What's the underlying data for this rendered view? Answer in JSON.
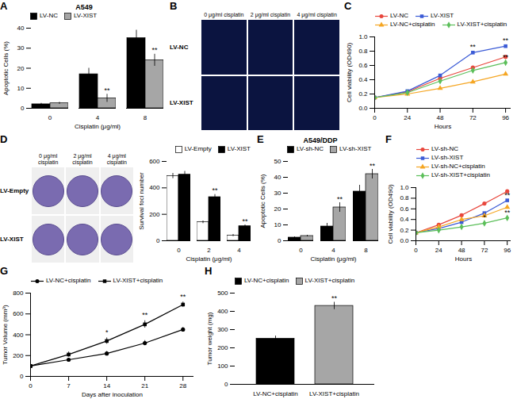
{
  "chart_data": [
    {
      "panel": "A",
      "type": "bar",
      "title": "A549",
      "categories": [
        0,
        4,
        8
      ],
      "x_label": "Cisplatin (μg/ml)",
      "y_label": "Apoptotic Cells (%)",
      "ylim": [
        0,
        40
      ],
      "yticks": [
        0,
        10,
        20,
        30,
        40
      ],
      "grid": false,
      "legend": "top-left",
      "series": [
        {
          "name": "LV-NC",
          "color": "#000000",
          "values": [
            2,
            17,
            35
          ],
          "errors": [
            0.5,
            3,
            4
          ]
        },
        {
          "name": "LV-XIST",
          "color": "#a6a6a6",
          "values": [
            2.5,
            5,
            24
          ],
          "errors": [
            0.5,
            2,
            3
          ],
          "significance": [
            null,
            "**",
            "**"
          ]
        }
      ]
    },
    {
      "panel": "B",
      "type": "image_grid",
      "columns": [
        "0 μg/ml cisplatin",
        "2 μg/ml cisplatin",
        "4 μg/ml cisplatin"
      ],
      "rows": [
        "LV-NC",
        "LV-XIST"
      ]
    },
    {
      "panel": "C",
      "type": "line",
      "x": [
        0,
        24,
        48,
        72,
        96
      ],
      "x_label": "Hours",
      "y_label": "Cell viability (OD490)",
      "xlim": [
        0,
        100
      ],
      "xticks": [
        0,
        24,
        48,
        72,
        96
      ],
      "ylim": [
        0,
        1
      ],
      "yticks": [
        {
          "value": 0,
          "label": "0.0"
        },
        0.2,
        0.4,
        0.6,
        0.8,
        {
          "value": 1,
          "label": "1.0"
        }
      ],
      "grid": false,
      "legend": "top-left",
      "series": [
        {
          "name": "LV-NC",
          "color": "#e8463c",
          "marker": "circle",
          "values": [
            0.15,
            0.23,
            0.42,
            0.57,
            0.72
          ]
        },
        {
          "name": "LV-XIST",
          "color": "#3b5bd6",
          "marker": "square",
          "values": [
            0.15,
            0.24,
            0.46,
            0.78,
            0.87
          ],
          "significance": [
            null,
            null,
            null,
            "**",
            "**"
          ]
        },
        {
          "name": "LV-NC+cisplatin",
          "color": "#f5a623",
          "marker": "triangle",
          "values": [
            0.15,
            0.2,
            0.28,
            0.37,
            0.48
          ]
        },
        {
          "name": "LV-XIST+cisplatin",
          "color": "#5cbf5a",
          "marker": "diamond",
          "values": [
            0.15,
            0.22,
            0.38,
            0.53,
            0.64
          ],
          "significance": [
            null,
            null,
            null,
            null,
            "**"
          ]
        }
      ]
    },
    {
      "panel": "D",
      "type": "bar",
      "images": {
        "columns": [
          "0 μg/ml cisplatin",
          "2 μg/ml cisplatin",
          "4 μg/ml cisplatin"
        ],
        "rows": [
          "LV-Empty",
          "LV-XIST"
        ]
      },
      "categories": [
        0,
        2,
        4
      ],
      "x_label": "Cisplatin (μg/ml)",
      "y_label": "Survival foci number",
      "ylim": [
        0,
        600
      ],
      "yticks": [
        0,
        200,
        400,
        600
      ],
      "grid": false,
      "legend": "top-right",
      "series": [
        {
          "name": "LV-Empty",
          "color": "#ffffff",
          "values": [
            490,
            140,
            40
          ],
          "errors": [
            20,
            10,
            8
          ]
        },
        {
          "name": "LV-XIST",
          "color": "#000000",
          "values": [
            500,
            330,
            110
          ],
          "errors": [
            25,
            20,
            10
          ],
          "significance": [
            null,
            "**",
            "**"
          ]
        }
      ]
    },
    {
      "panel": "E",
      "type": "bar",
      "title": "A549/DDP",
      "categories": [
        0,
        4,
        8
      ],
      "x_label": "Cisplatin (μg/ml)",
      "y_label": "Apoptotic Cells (%)",
      "ylim": [
        0,
        50
      ],
      "yticks": [
        0,
        10,
        20,
        30,
        40,
        50
      ],
      "grid": false,
      "legend": "top-left",
      "series": [
        {
          "name": "LV-sh-NC",
          "color": "#000000",
          "values": [
            2,
            9,
            31
          ],
          "errors": [
            0.5,
            2,
            4
          ]
        },
        {
          "name": "LV-sh-XIST",
          "color": "#a6a6a6",
          "values": [
            3,
            21,
            42
          ],
          "errors": [
            0.5,
            3,
            3
          ],
          "significance": [
            null,
            "**",
            "**"
          ]
        }
      ]
    },
    {
      "panel": "F",
      "type": "line",
      "x": [
        0,
        24,
        48,
        72,
        96
      ],
      "x_label": "Hours",
      "y_label": "Cell viability (OD490)",
      "xlim": [
        0,
        100
      ],
      "xticks": [
        0,
        24,
        48,
        72,
        96
      ],
      "ylim": [
        0,
        1
      ],
      "yticks": [
        {
          "value": 0,
          "label": "0.0"
        },
        0.2,
        0.4,
        0.6,
        0.8,
        {
          "value": 1,
          "label": "1.0"
        }
      ],
      "grid": false,
      "legend": "top-left",
      "series": [
        {
          "name": "LV-sh-NC",
          "color": "#e8463c",
          "marker": "circle",
          "values": [
            0.15,
            0.3,
            0.48,
            0.7,
            0.93
          ]
        },
        {
          "name": "LV-sh-XIST",
          "color": "#3b5bd6",
          "marker": "square",
          "values": [
            0.15,
            0.23,
            0.35,
            0.52,
            0.76
          ],
          "significance": [
            null,
            null,
            null,
            null,
            "**"
          ]
        },
        {
          "name": "LV-sh-NC+cisplatin",
          "color": "#f5a623",
          "marker": "triangle",
          "values": [
            0.15,
            0.26,
            0.4,
            0.47,
            0.63
          ]
        },
        {
          "name": "LV-sh-XIST+cisplatin",
          "color": "#5cbf5a",
          "marker": "diamond",
          "values": [
            0.15,
            0.2,
            0.26,
            0.33,
            0.43
          ],
          "significance": [
            null,
            null,
            null,
            "*",
            "**"
          ]
        }
      ]
    },
    {
      "panel": "G",
      "type": "line",
      "x": [
        0,
        7,
        14,
        21,
        28
      ],
      "x_label": "Days after inoculation",
      "y_label": "Tumor Volume (mm³)",
      "xlim": [
        0,
        30
      ],
      "xticks": [
        0,
        7,
        14,
        21,
        28
      ],
      "ylim": [
        0,
        800
      ],
      "yticks": [
        0,
        200,
        400,
        600,
        800
      ],
      "grid": false,
      "legend": "top-left",
      "series": [
        {
          "name": "LV-NC+cisplatin",
          "color": "#000000",
          "marker": "circle",
          "values": [
            100,
            160,
            220,
            320,
            450
          ],
          "errors": [
            5,
            15,
            20,
            25,
            20
          ]
        },
        {
          "name": "LV-XIST+cisplatin",
          "color": "#000000",
          "marker": "square",
          "values": [
            100,
            210,
            340,
            500,
            690
          ],
          "errors": [
            5,
            25,
            30,
            35,
            25
          ],
          "significance": [
            null,
            null,
            "*",
            "**",
            "**"
          ]
        }
      ]
    },
    {
      "panel": "H",
      "type": "bar",
      "categories": [
        "LV-NC+cisplatin",
        "LV-XIST+cisplatin"
      ],
      "values": [
        250,
        430
      ],
      "errors": [
        15,
        20
      ],
      "significance": [
        null,
        "**"
      ],
      "colors": [
        "#000000",
        "#a6a6a6"
      ],
      "y_label": "Tumor weight (mg)",
      "ylim": [
        0,
        500
      ],
      "yticks": [
        0,
        100,
        200,
        300,
        400,
        500
      ],
      "grid": false,
      "legend": "top-left"
    }
  ]
}
